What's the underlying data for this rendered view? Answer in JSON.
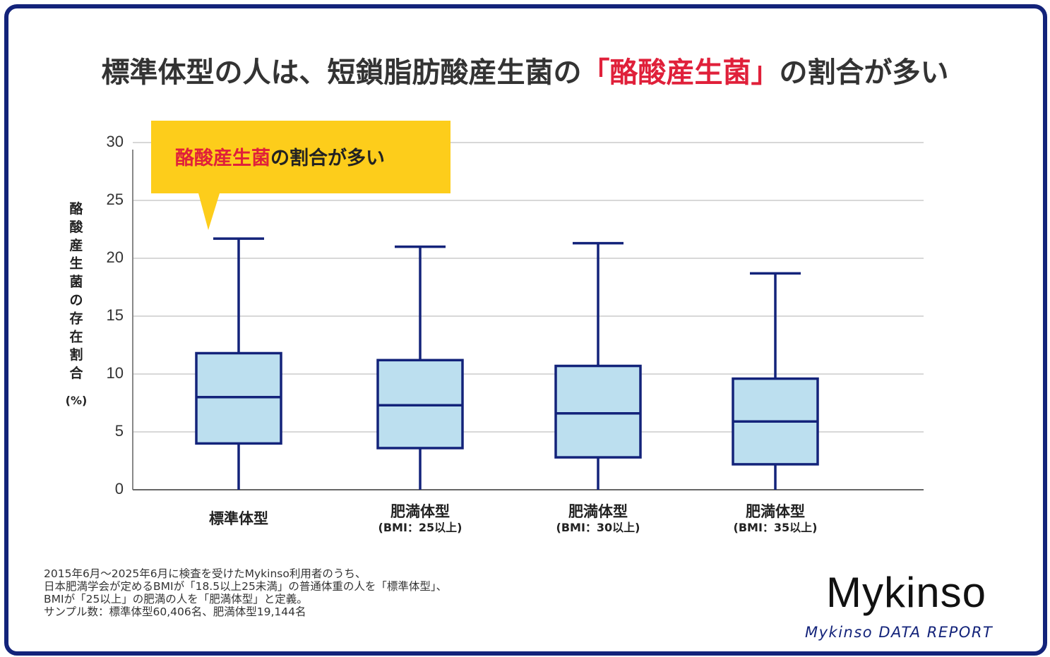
{
  "title": {
    "part1": "標準体型の人は、短鎖脂肪酸産生菌の",
    "highlight": "「酪酸産生菌」",
    "part2": "の割合が多い"
  },
  "callout": {
    "highlight": "酪酸産生菌",
    "rest": "の割合が多い"
  },
  "colors": {
    "frame": "#13237a",
    "box_fill": "#bcdfef",
    "box_stroke": "#13237a",
    "highlight": "#e0203a",
    "callout_bg": "#fdcd1b",
    "grid": "#cccccc"
  },
  "chart_data": {
    "type": "boxplot",
    "ylabel": [
      "酪",
      "酸",
      "産",
      "生",
      "菌",
      "の",
      "存",
      "在",
      "割",
      "合"
    ],
    "yunit": "(%)",
    "ylim": [
      0,
      30
    ],
    "yticks": [
      0,
      5,
      10,
      15,
      20,
      25,
      30
    ],
    "grid": true,
    "categories": [
      {
        "name": "標準体型",
        "sub": ""
      },
      {
        "name": "肥満体型",
        "sub": "(BMI：25以上)"
      },
      {
        "name": "肥満体型",
        "sub": "(BMI：30以上)"
      },
      {
        "name": "肥満体型",
        "sub": "(BMI：35以上)"
      }
    ],
    "boxes": [
      {
        "min": 0,
        "q1": 4.0,
        "median": 8.0,
        "q3": 11.8,
        "max": 21.7
      },
      {
        "min": 0,
        "q1": 3.6,
        "median": 7.3,
        "q3": 11.2,
        "max": 21.0
      },
      {
        "min": 0,
        "q1": 2.8,
        "median": 6.6,
        "q3": 10.7,
        "max": 21.3
      },
      {
        "min": 0,
        "q1": 2.2,
        "median": 5.9,
        "q3": 9.6,
        "max": 18.7
      }
    ]
  },
  "notes": [
    "2015年6月〜2025年6月に検査を受けたMykinso利用者のうち、",
    "日本肥満学会が定めるBMIが「18.5以上25未満」の普通体重の人を「標準体型」、",
    "BMIが「25以上」の肥満の人を「肥満体型」と定義。",
    "サンプル数：標準体型60,406名、肥満体型19,144名"
  ],
  "brand": {
    "name": "Mykinso",
    "subtitle": "Mykinso DATA REPORT"
  }
}
